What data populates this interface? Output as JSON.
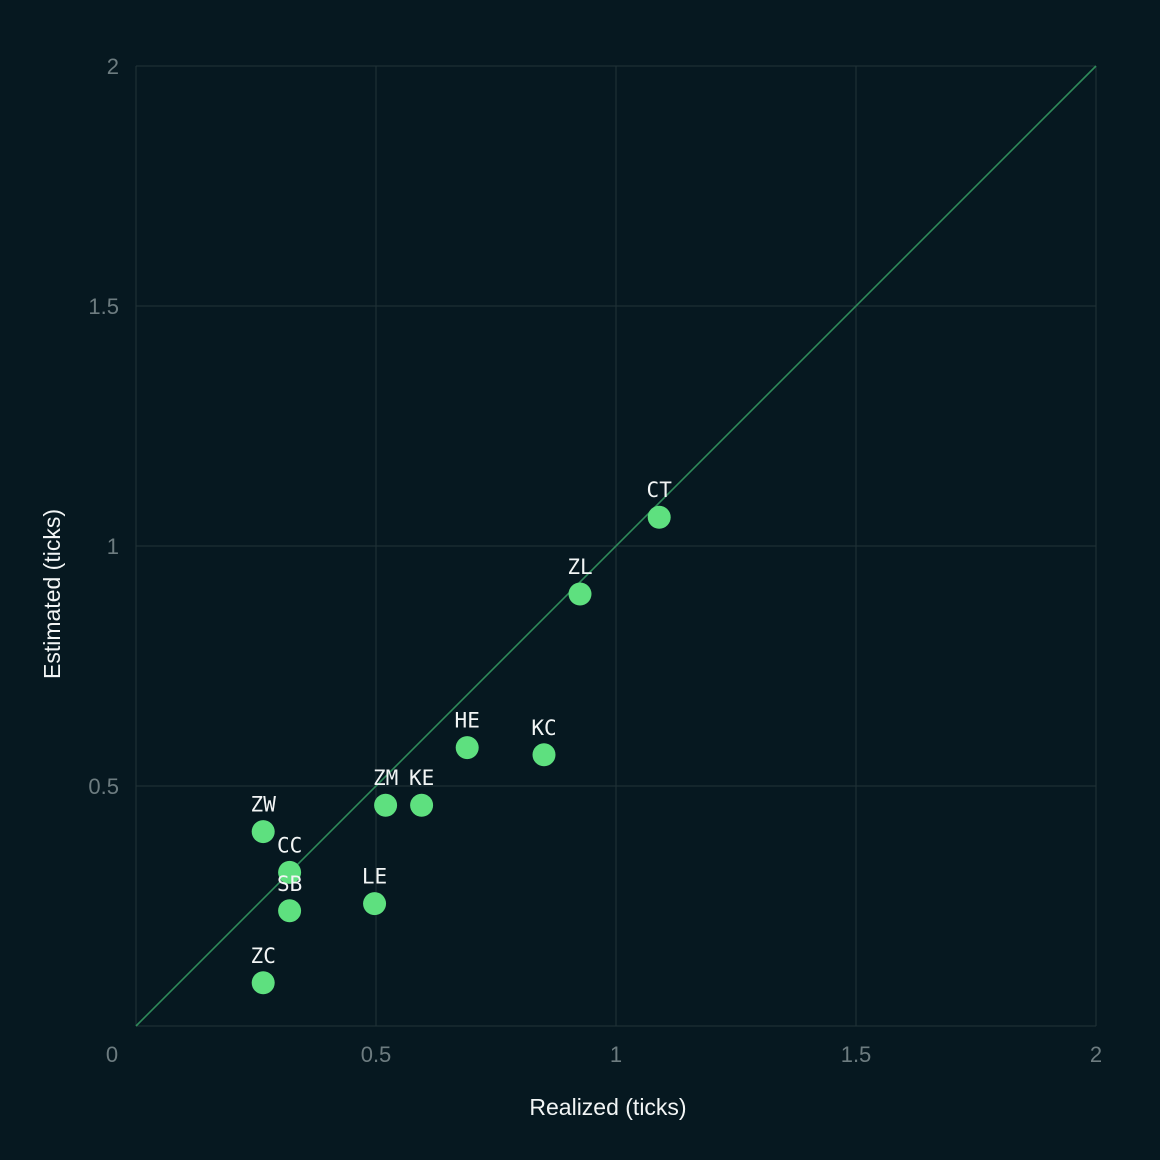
{
  "chart_data": {
    "type": "scatter",
    "xlabel": "Realized (ticks)",
    "ylabel": "Estimated (ticks)",
    "xlim": [
      0,
      2
    ],
    "ylim": [
      0,
      2
    ],
    "x_ticks": [
      "0",
      "0.5",
      "1",
      "1.5",
      "2"
    ],
    "y_ticks": [
      "0",
      "0.5",
      "1",
      "1.5",
      "2"
    ],
    "grid": true,
    "reference_line": "y = x",
    "colors": {
      "background": "#061820",
      "grid": "#213338",
      "reference_line": "#2f8a5a",
      "points": "#5ee07f",
      "text": "#f2f5f5",
      "tick_text": "#6d7c80"
    },
    "points": [
      {
        "label": "CT",
        "x": 1.09,
        "y": 1.06
      },
      {
        "label": "ZL",
        "x": 0.925,
        "y": 0.9
      },
      {
        "label": "HE",
        "x": 0.69,
        "y": 0.58
      },
      {
        "label": "KC",
        "x": 0.85,
        "y": 0.565
      },
      {
        "label": "ZM",
        "x": 0.52,
        "y": 0.46
      },
      {
        "label": "KE",
        "x": 0.595,
        "y": 0.46
      },
      {
        "label": "ZW",
        "x": 0.265,
        "y": 0.405
      },
      {
        "label": "CC",
        "x": 0.32,
        "y": 0.32
      },
      {
        "label": "SB",
        "x": 0.32,
        "y": 0.24
      },
      {
        "label": "LE",
        "x": 0.497,
        "y": 0.255
      },
      {
        "label": "ZC",
        "x": 0.265,
        "y": 0.09
      }
    ]
  }
}
